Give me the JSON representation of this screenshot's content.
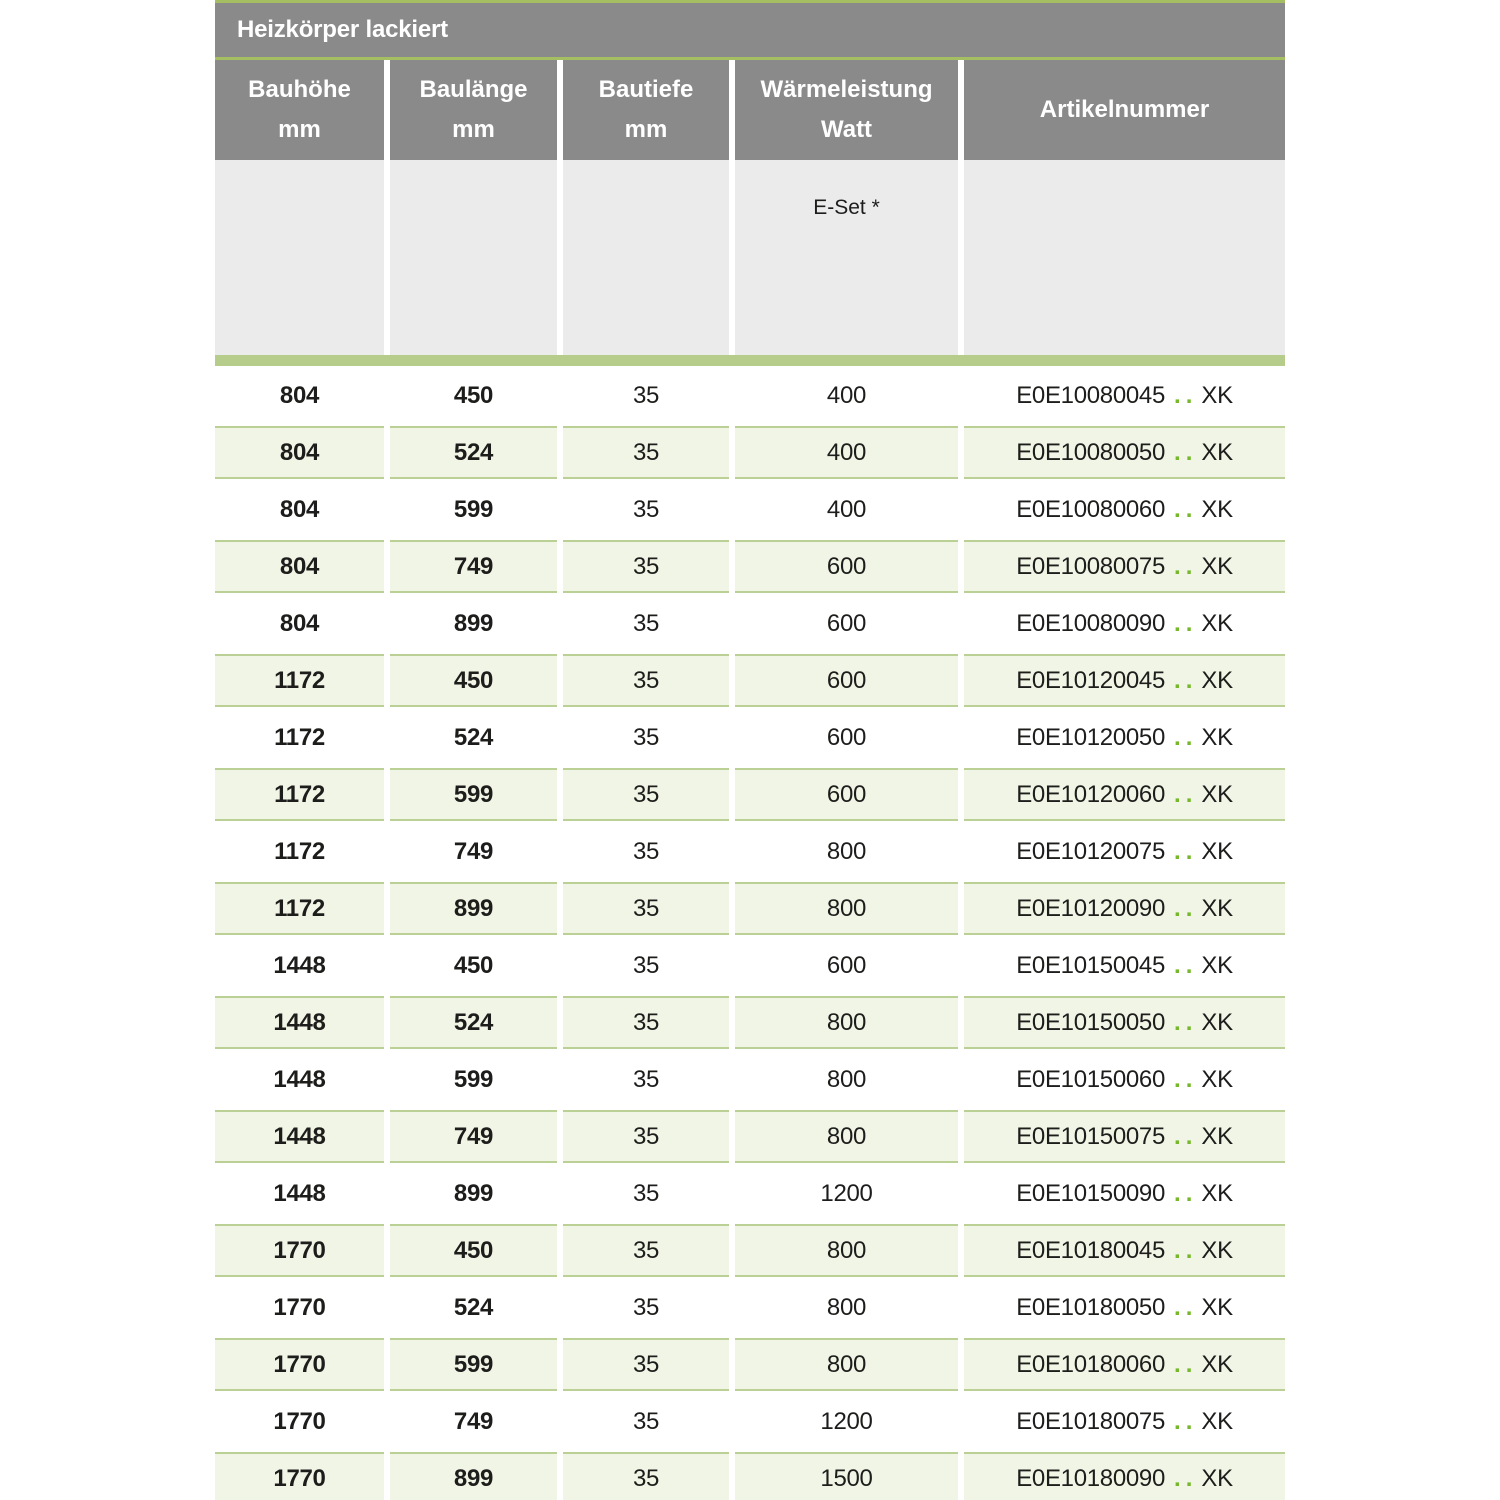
{
  "title": "Heizkörper lackiert",
  "colors": {
    "header_gray": "#8a8a8a",
    "subheader_gray": "#ebebeb",
    "accent_line_green": "#a4be61",
    "thick_bar_green": "#b5cc8b",
    "row_green_bg": "#f1f5e6",
    "row_green_border": "#bad094",
    "dots_green": "#76b82a",
    "text": "#1d1d1b"
  },
  "columns": [
    {
      "line1": "Bauhöhe",
      "line2": "mm"
    },
    {
      "line1": "Baulänge",
      "line2": "mm"
    },
    {
      "line1": "Bautiefe",
      "line2": "mm"
    },
    {
      "line1": "Wärmeleistung",
      "line2": "Watt"
    },
    {
      "line1": "Artikelnummer",
      "line2": ""
    }
  ],
  "subheader": {
    "eset_label": "E-Set *"
  },
  "article_dots": "..",
  "rows": [
    {
      "bauhoehe": "804",
      "baulaenge": "450",
      "bautiefe": "35",
      "watt": "400",
      "artikel": "E0E10080045",
      "artikel_suffix": "XK"
    },
    {
      "bauhoehe": "804",
      "baulaenge": "524",
      "bautiefe": "35",
      "watt": "400",
      "artikel": "E0E10080050",
      "artikel_suffix": "XK"
    },
    {
      "bauhoehe": "804",
      "baulaenge": "599",
      "bautiefe": "35",
      "watt": "400",
      "artikel": "E0E10080060",
      "artikel_suffix": "XK"
    },
    {
      "bauhoehe": "804",
      "baulaenge": "749",
      "bautiefe": "35",
      "watt": "600",
      "artikel": "E0E10080075",
      "artikel_suffix": "XK"
    },
    {
      "bauhoehe": "804",
      "baulaenge": "899",
      "bautiefe": "35",
      "watt": "600",
      "artikel": "E0E10080090",
      "artikel_suffix": "XK"
    },
    {
      "bauhoehe": "1172",
      "baulaenge": "450",
      "bautiefe": "35",
      "watt": "600",
      "artikel": "E0E10120045",
      "artikel_suffix": "XK"
    },
    {
      "bauhoehe": "1172",
      "baulaenge": "524",
      "bautiefe": "35",
      "watt": "600",
      "artikel": "E0E10120050",
      "artikel_suffix": "XK"
    },
    {
      "bauhoehe": "1172",
      "baulaenge": "599",
      "bautiefe": "35",
      "watt": "600",
      "artikel": "E0E10120060",
      "artikel_suffix": "XK"
    },
    {
      "bauhoehe": "1172",
      "baulaenge": "749",
      "bautiefe": "35",
      "watt": "800",
      "artikel": "E0E10120075",
      "artikel_suffix": "XK"
    },
    {
      "bauhoehe": "1172",
      "baulaenge": "899",
      "bautiefe": "35",
      "watt": "800",
      "artikel": "E0E10120090",
      "artikel_suffix": "XK"
    },
    {
      "bauhoehe": "1448",
      "baulaenge": "450",
      "bautiefe": "35",
      "watt": "600",
      "artikel": "E0E10150045",
      "artikel_suffix": "XK"
    },
    {
      "bauhoehe": "1448",
      "baulaenge": "524",
      "bautiefe": "35",
      "watt": "800",
      "artikel": "E0E10150050",
      "artikel_suffix": "XK"
    },
    {
      "bauhoehe": "1448",
      "baulaenge": "599",
      "bautiefe": "35",
      "watt": "800",
      "artikel": "E0E10150060",
      "artikel_suffix": "XK"
    },
    {
      "bauhoehe": "1448",
      "baulaenge": "749",
      "bautiefe": "35",
      "watt": "800",
      "artikel": "E0E10150075",
      "artikel_suffix": "XK"
    },
    {
      "bauhoehe": "1448",
      "baulaenge": "899",
      "bautiefe": "35",
      "watt": "1200",
      "artikel": "E0E10150090",
      "artikel_suffix": "XK"
    },
    {
      "bauhoehe": "1770",
      "baulaenge": "450",
      "bautiefe": "35",
      "watt": "800",
      "artikel": "E0E10180045",
      "artikel_suffix": "XK"
    },
    {
      "bauhoehe": "1770",
      "baulaenge": "524",
      "bautiefe": "35",
      "watt": "800",
      "artikel": "E0E10180050",
      "artikel_suffix": "XK"
    },
    {
      "bauhoehe": "1770",
      "baulaenge": "599",
      "bautiefe": "35",
      "watt": "800",
      "artikel": "E0E10180060",
      "artikel_suffix": "XK"
    },
    {
      "bauhoehe": "1770",
      "baulaenge": "749",
      "bautiefe": "35",
      "watt": "1200",
      "artikel": "E0E10180075",
      "artikel_suffix": "XK"
    },
    {
      "bauhoehe": "1770",
      "baulaenge": "899",
      "bautiefe": "35",
      "watt": "1500",
      "artikel": "E0E10180090",
      "artikel_suffix": "XK"
    }
  ]
}
